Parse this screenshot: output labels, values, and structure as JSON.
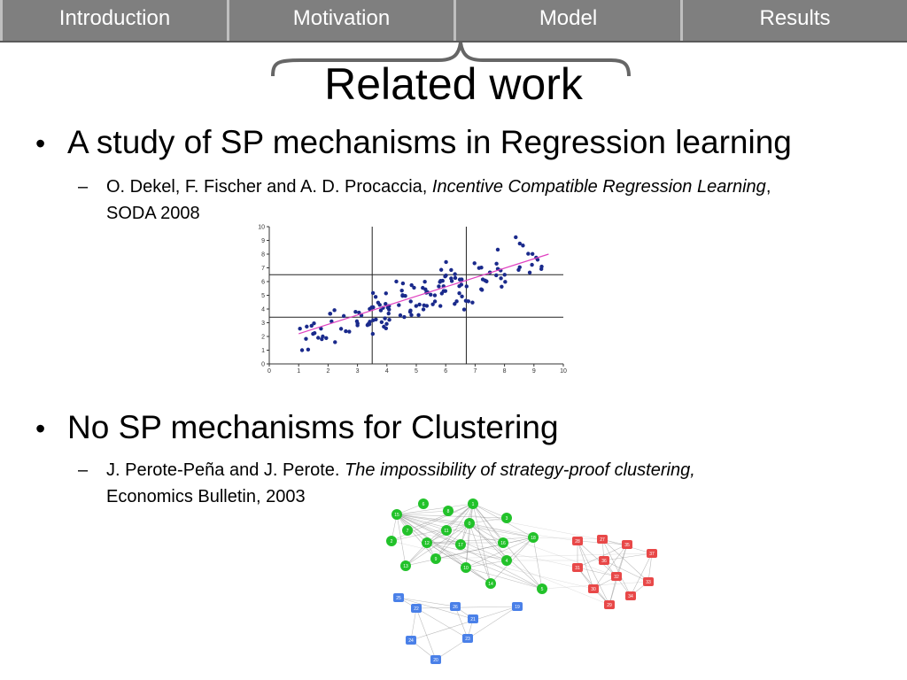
{
  "nav": {
    "tabs": [
      "Introduction",
      "Motivation",
      "Model",
      "Results"
    ]
  },
  "title": "Related work",
  "bullets": [
    {
      "text": "A study of SP mechanisms in Regression learning",
      "sub_authors": "O. Dekel, F. Fischer and A. D. Procaccia, ",
      "sub_title": "Incentive Compatible Regression Learning",
      "sub_after": ",",
      "sub_venue": "SODA 2008"
    },
    {
      "text": "No SP mechanisms for Clustering",
      "sub_authors": "J. Perote-Peña and J. Perote. ",
      "sub_title": "The impossibility of strategy-proof clustering,",
      "sub_venue": "Economics Bulletin, 2003"
    }
  ],
  "scatter": {
    "x_ticks": [
      "0",
      "1",
      "2",
      "3",
      "4",
      "5",
      "6",
      "7",
      "8",
      "9",
      "10"
    ],
    "y_ticks": [
      "0",
      "1",
      "2",
      "3",
      "4",
      "5",
      "6",
      "7",
      "8",
      "9",
      "10"
    ],
    "xlim": [
      0,
      10
    ],
    "ylim": [
      0,
      10
    ],
    "vlines": [
      3.5,
      6.7
    ],
    "hlines": [
      3.4,
      6.5
    ],
    "fit_line": {
      "x": [
        1,
        9.5
      ],
      "y": [
        2.2,
        8.0
      ]
    },
    "colors": {
      "points": "#1a2a8c",
      "fit": "#e040c0"
    }
  },
  "graph": {
    "green_labels": [
      "15",
      "6",
      "8",
      "1",
      "7",
      "11",
      "0",
      "3",
      "2",
      "12",
      "17",
      "16",
      "18",
      "13",
      "9",
      "10",
      "4",
      "14",
      "5"
    ],
    "red_labels": [
      "28",
      "27",
      "35",
      "37",
      "31",
      "36",
      "32",
      "33",
      "30",
      "34",
      "29"
    ],
    "blue_labels": [
      "25",
      "22",
      "26",
      "19",
      "21",
      "24",
      "23",
      "20"
    ],
    "colors": {
      "green": "#22c22a",
      "red": "#e84848",
      "blue": "#4a80e8"
    }
  }
}
